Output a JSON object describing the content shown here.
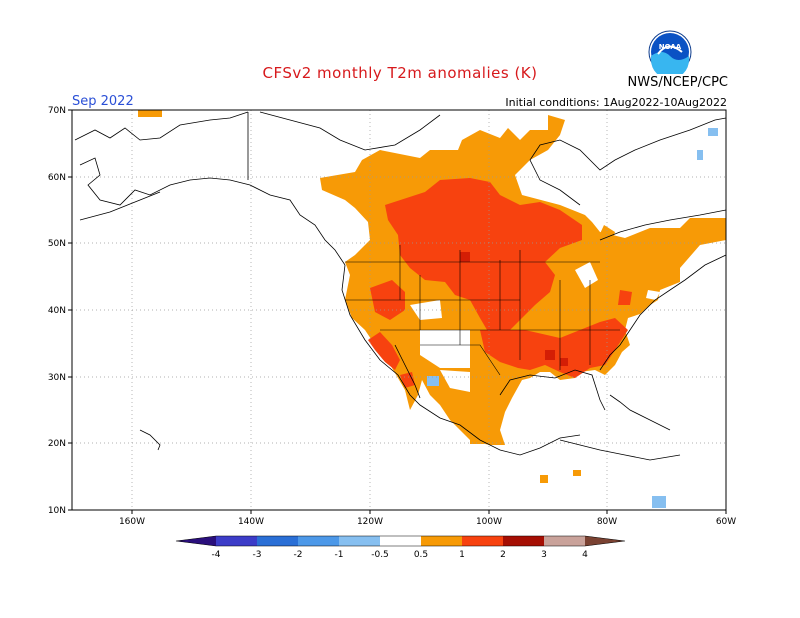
{
  "title": "CFSv2 monthly T2m anomalies (K)",
  "agency": "NWS/NCEP/CPC",
  "logo_text": "NOAA",
  "month": "Sep 2022",
  "initial_conditions": "Initial conditions: 1Aug2022-10Aug2022",
  "lat_labels": [
    "70N",
    "60N",
    "50N",
    "40N",
    "30N",
    "20N",
    "10N"
  ],
  "lon_labels": [
    "160W",
    "140W",
    "120W",
    "100W",
    "80W",
    "60W"
  ],
  "colorbar": {
    "ticks": [
      "-4",
      "-3",
      "-2",
      "-1",
      "-0.5",
      "0.5",
      "1",
      "2",
      "3",
      "4"
    ],
    "colors": [
      "#2a0f7c",
      "#3c3cc8",
      "#2a6fd6",
      "#4c98e8",
      "#86bff0",
      "#ffffff",
      "#f79a06",
      "#f7420f",
      "#d41e05",
      "#8b0a02",
      "#c9a29a",
      "#7a4232"
    ]
  },
  "colors": {
    "anom_05_1": "#f79a06",
    "anom_1_2": "#f7420f",
    "anom_2_3": "#d41e05",
    "anom_neg": "#86bff0",
    "title": "#d7191c",
    "month": "#2a4fd6"
  }
}
